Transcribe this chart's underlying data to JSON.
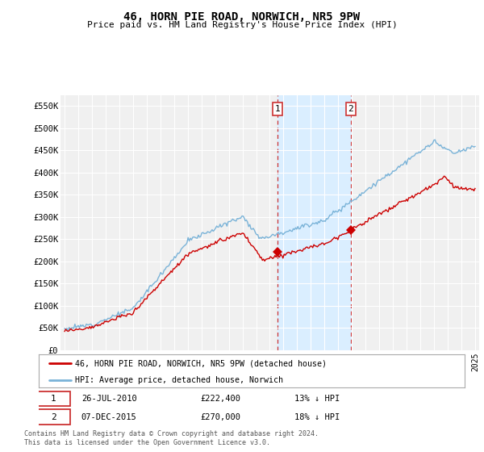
{
  "title": "46, HORN PIE ROAD, NORWICH, NR5 9PW",
  "subtitle": "Price paid vs. HM Land Registry's House Price Index (HPI)",
  "ylabel_ticks": [
    "£0",
    "£50K",
    "£100K",
    "£150K",
    "£200K",
    "£250K",
    "£300K",
    "£350K",
    "£400K",
    "£450K",
    "£500K",
    "£550K"
  ],
  "yvalues": [
    0,
    50000,
    100000,
    150000,
    200000,
    250000,
    300000,
    350000,
    400000,
    450000,
    500000,
    550000
  ],
  "ylim": [
    0,
    575000
  ],
  "xlim_start": 1994.7,
  "xlim_end": 2025.3,
  "sale1_x": 2010.57,
  "sale1_y": 222400,
  "sale2_x": 2015.92,
  "sale2_y": 270000,
  "shade_color": "#daeeff",
  "line_red": "#cc0000",
  "line_blue": "#7ab3d8",
  "legend1": "46, HORN PIE ROAD, NORWICH, NR5 9PW (detached house)",
  "legend2": "HPI: Average price, detached house, Norwich",
  "annotation1_date": "26-JUL-2010",
  "annotation1_price": "£222,400",
  "annotation1_pct": "13% ↓ HPI",
  "annotation2_date": "07-DEC-2015",
  "annotation2_price": "£270,000",
  "annotation2_pct": "18% ↓ HPI",
  "footer": "Contains HM Land Registry data © Crown copyright and database right 2024.\nThis data is licensed under the Open Government Licence v3.0.",
  "bg_color": "#ffffff",
  "plot_bg_color": "#f0f0f0"
}
